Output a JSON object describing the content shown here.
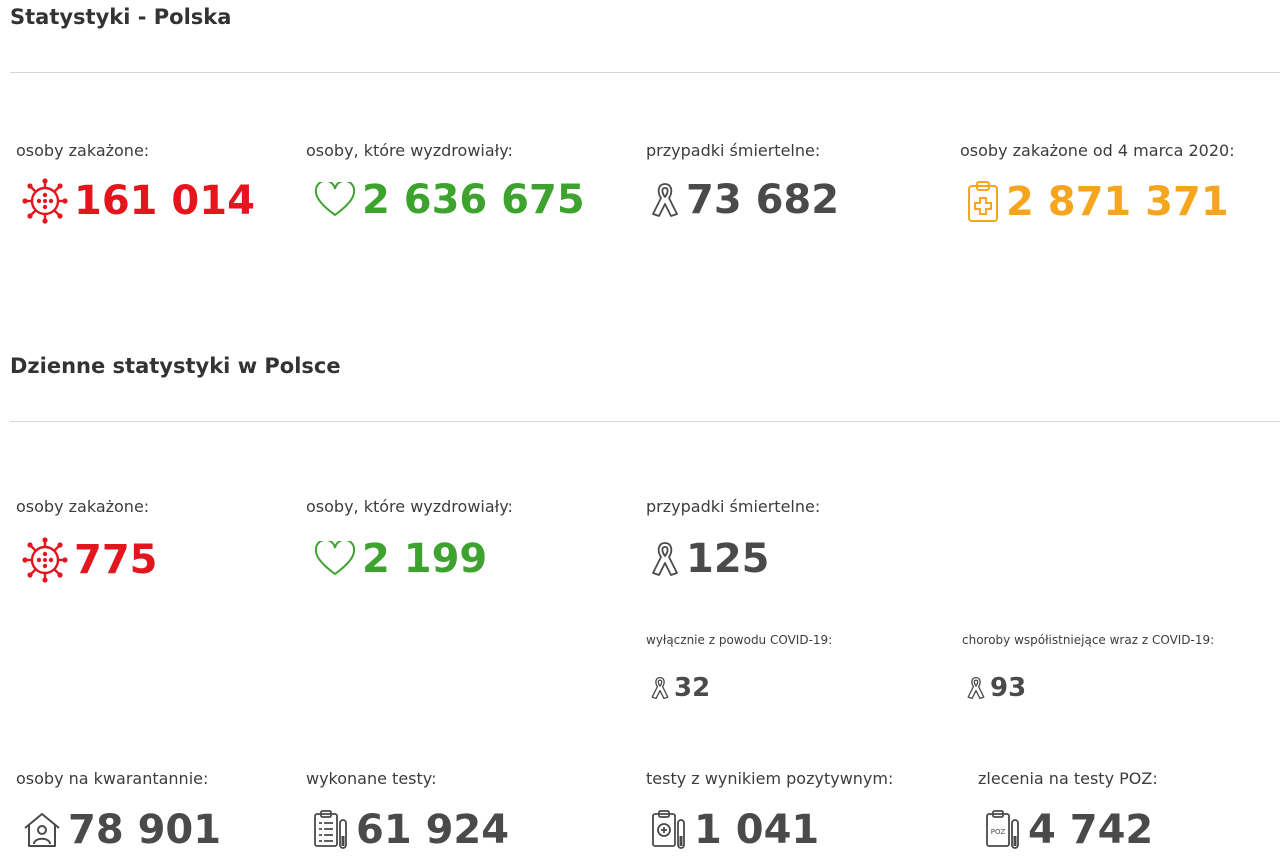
{
  "colors": {
    "infected": "#e2161c",
    "recovered": "#3da32e",
    "deaths": "#4a4a4a",
    "total": "#f5a61e"
  },
  "section_total": {
    "title": "Statystyki - Polska",
    "infected": {
      "label": "osoby zakażone:",
      "value": "161 014",
      "icon": "virus-icon"
    },
    "recovered": {
      "label": "osoby, które wyzdrowiały:",
      "value": "2 636 675",
      "icon": "heart-icon"
    },
    "deaths": {
      "label": "przypadki śmiertelne:",
      "value": "73 682",
      "icon": "ribbon-icon"
    },
    "since_march": {
      "label": "osoby zakażone od 4 marca 2020:",
      "value": "2 871 371",
      "icon": "clipboard-cross-icon"
    }
  },
  "section_daily": {
    "title": "Dzienne statystyki w Polsce",
    "infected": {
      "label": "osoby zakażone:",
      "value": "775",
      "icon": "virus-icon"
    },
    "recovered": {
      "label": "osoby, które wyzdrowiały:",
      "value": "2 199",
      "icon": "heart-icon"
    },
    "deaths": {
      "label": "przypadki śmiertelne:",
      "value": "125",
      "icon": "ribbon-icon"
    },
    "deaths_covid_only": {
      "label": "wyłącznie z powodu COVID-19:",
      "value": "32",
      "icon": "ribbon-icon"
    },
    "deaths_comorbid": {
      "label": "choroby współistniejące wraz z COVID-19:",
      "value": "93",
      "icon": "ribbon-icon"
    },
    "quarantine": {
      "label": "osoby na kwarantannie:",
      "value": "78 901",
      "icon": "house-person-icon"
    },
    "tests": {
      "label": "wykonane testy:",
      "value": "61 924",
      "icon": "test-clipboard-icon"
    },
    "positive_tests": {
      "label": "testy z wynikiem pozytywnym:",
      "value": "1 041",
      "icon": "test-positive-icon"
    },
    "poz_orders": {
      "label": "zlecenia na testy POZ:",
      "value": "4 742",
      "icon": "poz-test-icon"
    }
  }
}
